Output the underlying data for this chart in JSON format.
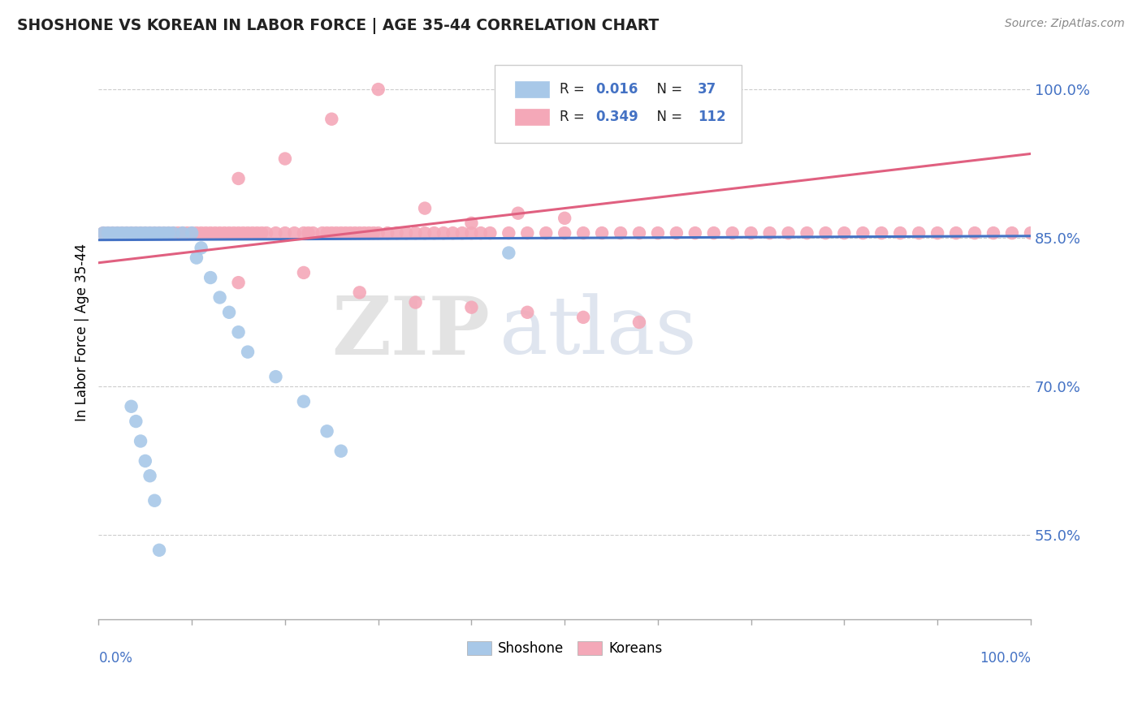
{
  "title": "SHOSHONE VS KOREAN IN LABOR FORCE | AGE 35-44 CORRELATION CHART",
  "source_text": "Source: ZipAtlas.com",
  "ylabel": "In Labor Force | Age 35-44",
  "y_tick_labels": [
    "55.0%",
    "70.0%",
    "85.0%",
    "100.0%"
  ],
  "y_tick_values": [
    0.55,
    0.7,
    0.85,
    1.0
  ],
  "x_range": [
    0.0,
    1.0
  ],
  "y_range": [
    0.465,
    1.045
  ],
  "shoshone_color": "#a8c8e8",
  "korean_color": "#f4a8b8",
  "shoshone_line_color": "#4472c4",
  "korean_line_color": "#e06080",
  "watermark_zip": "ZIP",
  "watermark_atlas": "atlas",
  "footer_shoshone": "Shoshone",
  "footer_koreans": "Koreans",
  "shoshone_x": [
    0.005,
    0.01,
    0.015,
    0.02,
    0.025,
    0.03,
    0.035,
    0.04,
    0.045,
    0.05,
    0.055,
    0.06,
    0.065,
    0.07,
    0.075,
    0.08,
    0.09,
    0.1,
    0.105,
    0.11,
    0.12,
    0.13,
    0.14,
    0.15,
    0.16,
    0.19,
    0.22,
    0.245,
    0.26,
    0.035,
    0.04,
    0.045,
    0.05,
    0.055,
    0.06,
    0.065,
    0.44
  ],
  "shoshone_y": [
    0.855,
    0.855,
    0.855,
    0.855,
    0.855,
    0.855,
    0.855,
    0.855,
    0.855,
    0.855,
    0.855,
    0.855,
    0.855,
    0.855,
    0.855,
    0.855,
    0.855,
    0.855,
    0.83,
    0.84,
    0.81,
    0.79,
    0.775,
    0.755,
    0.735,
    0.71,
    0.685,
    0.655,
    0.635,
    0.68,
    0.665,
    0.645,
    0.625,
    0.61,
    0.585,
    0.535,
    0.835
  ],
  "korean_x": [
    0.005,
    0.01,
    0.015,
    0.02,
    0.025,
    0.03,
    0.035,
    0.04,
    0.045,
    0.05,
    0.055,
    0.06,
    0.065,
    0.07,
    0.075,
    0.08,
    0.085,
    0.09,
    0.095,
    0.1,
    0.105,
    0.11,
    0.115,
    0.12,
    0.125,
    0.13,
    0.135,
    0.14,
    0.145,
    0.15,
    0.155,
    0.16,
    0.165,
    0.17,
    0.175,
    0.18,
    0.19,
    0.2,
    0.21,
    0.22,
    0.225,
    0.23,
    0.24,
    0.245,
    0.25,
    0.255,
    0.26,
    0.265,
    0.27,
    0.275,
    0.28,
    0.285,
    0.29,
    0.295,
    0.3,
    0.31,
    0.32,
    0.33,
    0.34,
    0.35,
    0.36,
    0.37,
    0.38,
    0.39,
    0.4,
    0.41,
    0.42,
    0.44,
    0.46,
    0.48,
    0.5,
    0.52,
    0.54,
    0.56,
    0.58,
    0.6,
    0.62,
    0.64,
    0.66,
    0.68,
    0.7,
    0.72,
    0.74,
    0.76,
    0.78,
    0.8,
    0.82,
    0.84,
    0.86,
    0.88,
    0.9,
    0.92,
    0.94,
    0.96,
    0.98,
    1.0,
    0.15,
    0.2,
    0.25,
    0.3,
    0.35,
    0.4,
    0.45,
    0.5,
    0.15,
    0.22,
    0.28,
    0.34,
    0.4,
    0.46,
    0.52,
    0.58
  ],
  "korean_y": [
    0.855,
    0.855,
    0.855,
    0.855,
    0.855,
    0.855,
    0.855,
    0.855,
    0.855,
    0.855,
    0.855,
    0.855,
    0.855,
    0.855,
    0.855,
    0.855,
    0.855,
    0.855,
    0.855,
    0.855,
    0.855,
    0.855,
    0.855,
    0.855,
    0.855,
    0.855,
    0.855,
    0.855,
    0.855,
    0.855,
    0.855,
    0.855,
    0.855,
    0.855,
    0.855,
    0.855,
    0.855,
    0.855,
    0.855,
    0.855,
    0.855,
    0.855,
    0.855,
    0.855,
    0.855,
    0.855,
    0.855,
    0.855,
    0.855,
    0.855,
    0.855,
    0.855,
    0.855,
    0.855,
    0.855,
    0.855,
    0.855,
    0.855,
    0.855,
    0.855,
    0.855,
    0.855,
    0.855,
    0.855,
    0.855,
    0.855,
    0.855,
    0.855,
    0.855,
    0.855,
    0.855,
    0.855,
    0.855,
    0.855,
    0.855,
    0.855,
    0.855,
    0.855,
    0.855,
    0.855,
    0.855,
    0.855,
    0.855,
    0.855,
    0.855,
    0.855,
    0.855,
    0.855,
    0.855,
    0.855,
    0.855,
    0.855,
    0.855,
    0.855,
    0.855,
    0.855,
    0.91,
    0.93,
    0.97,
    1.0,
    0.88,
    0.865,
    0.875,
    0.87,
    0.805,
    0.815,
    0.795,
    0.785,
    0.78,
    0.775,
    0.77,
    0.765
  ],
  "sho_line_x": [
    0.0,
    1.0
  ],
  "sho_line_y": [
    0.848,
    0.852
  ],
  "kor_line_x": [
    0.0,
    1.0
  ],
  "kor_line_y": [
    0.825,
    0.935
  ]
}
